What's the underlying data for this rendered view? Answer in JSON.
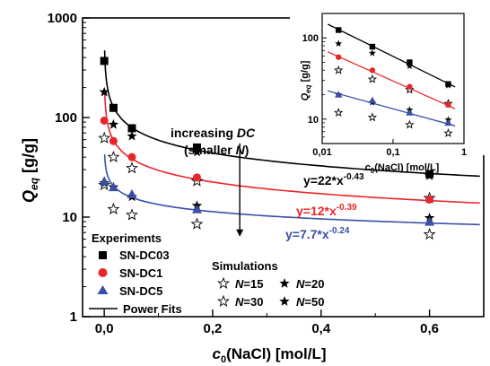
{
  "chart_data": [
    {
      "type": "scatter",
      "xlabel_sym": "c",
      "xlabel_sub": "0",
      "xlabel_rest": "(NaCl) [mol/L]",
      "ylabel_sym": "Q",
      "ylabel_sub": "eq",
      "ylabel_rest": " [g/g]",
      "xlim": [
        -0.04,
        0.7
      ],
      "ylim": [
        1,
        1000
      ],
      "yscale": "log",
      "x_ticks": [
        0.0,
        0.2,
        0.4,
        0.6
      ],
      "x_tick_labels": [
        "0,0",
        "0,2",
        "0,4",
        "0,6"
      ],
      "y_ticks": [
        1,
        10,
        100,
        1000
      ],
      "y_tick_labels": [
        "1",
        "10",
        "100",
        "1000"
      ],
      "series": [
        {
          "name": "SN-DC03",
          "marker": "square",
          "color": "#000000",
          "x": [
            0.0,
            0.017,
            0.051,
            0.171,
            0.6
          ],
          "y": [
            370,
            125,
            78,
            50,
            27
          ]
        },
        {
          "name": "SN-DC1",
          "marker": "circle",
          "color": "#e8262a",
          "x": [
            0.0,
            0.017,
            0.051,
            0.171,
            0.6
          ],
          "y": [
            93,
            58,
            40,
            25,
            15
          ]
        },
        {
          "name": "SN-DC5",
          "marker": "triangle",
          "color": "#3a4fa8",
          "x": [
            0.0,
            0.017,
            0.051,
            0.171,
            0.6
          ],
          "y": [
            23,
            20,
            17,
            12,
            9
          ]
        }
      ],
      "simulations_title": "Simulations",
      "simulations": [
        {
          "name": "15",
          "marker": "star-open",
          "x": [
            0.0,
            0.017,
            0.051,
            0.171,
            0.6
          ],
          "y": [
            21,
            12,
            10.5,
            8.5,
            6.7
          ]
        },
        {
          "name": "20",
          "marker": "star-filled",
          "x": [
            0.0,
            0.017,
            0.051,
            0.171,
            0.6
          ],
          "y": [
            22,
            20,
            16,
            13,
            9.8
          ]
        },
        {
          "name": "30",
          "marker": "star-open",
          "x": [
            0.0,
            0.017,
            0.051,
            0.171,
            0.6
          ],
          "y": [
            62,
            40,
            31,
            23,
            15.5
          ]
        },
        {
          "name": "50",
          "marker": "star-filled",
          "x": [
            0.0,
            0.017,
            0.051,
            0.171,
            0.6
          ],
          "y": [
            180,
            85,
            65,
            45,
            26
          ]
        }
      ],
      "sim_symbol": "N",
      "fits": [
        {
          "series": "SN-DC03",
          "a": 22,
          "b": -0.43,
          "color": "#000000",
          "label_main": "y=22*x",
          "label_exp": "-0.43"
        },
        {
          "series": "SN-DC1",
          "a": 12,
          "b": -0.39,
          "color": "#e8262a",
          "label_main": "y=12*x",
          "label_exp": "-0.39"
        },
        {
          "series": "SN-DC5",
          "a": 7.7,
          "b": -0.24,
          "color": "#3a4fa8",
          "label_main": "y=7.7*x",
          "label_exp": "-0.24"
        }
      ],
      "legend_title": "Experiments",
      "fit_legend": "Power Fits",
      "annotation_line1_a": "increasing ",
      "annotation_line1_b": "DC",
      "annotation_line2_a": "(smaller ",
      "annotation_line2_b": "N",
      "annotation_line2_c": ")",
      "annotation_arrow": {
        "x": 0.25,
        "y_from": 55,
        "y_to": 6.5
      }
    },
    {
      "type": "scatter",
      "role": "inset",
      "xscale": "log",
      "yscale": "log",
      "xlim": [
        0.01,
        1
      ],
      "ylim": [
        5,
        200
      ],
      "x_ticks": [
        0.01,
        0.1,
        1
      ],
      "x_tick_labels": [
        "0,01",
        "0,1",
        "1"
      ],
      "y_ticks": [
        10,
        100
      ],
      "y_tick_labels": [
        "10",
        "100"
      ],
      "xlabel_sym": "c",
      "xlabel_sub": "0",
      "xlabel_rest": "(NaCl) [mol/L]",
      "ylabel_sym": "Q",
      "ylabel_sub": "eq",
      "ylabel_rest": " [g/g]",
      "series": [
        {
          "name": "SN-DC03",
          "x": [
            0.017,
            0.051,
            0.171,
            0.6
          ],
          "y": [
            125,
            78,
            50,
            27
          ]
        },
        {
          "name": "SN-DC1",
          "x": [
            0.017,
            0.051,
            0.171,
            0.6
          ],
          "y": [
            58,
            40,
            25,
            15
          ]
        },
        {
          "name": "SN-DC5",
          "x": [
            0.017,
            0.051,
            0.171,
            0.6
          ],
          "y": [
            20,
            17,
            12,
            9
          ]
        }
      ],
      "simulations": [
        {
          "name": "15",
          "x": [
            0.017,
            0.051,
            0.171,
            0.6
          ],
          "y": [
            12,
            10.5,
            8.5,
            6.7
          ]
        },
        {
          "name": "20",
          "x": [
            0.017,
            0.051,
            0.171,
            0.6
          ],
          "y": [
            20,
            16,
            13,
            9.8
          ]
        },
        {
          "name": "30",
          "x": [
            0.017,
            0.051,
            0.171,
            0.6
          ],
          "y": [
            40,
            31,
            23,
            15.5
          ]
        },
        {
          "name": "50",
          "x": [
            0.017,
            0.051,
            0.171,
            0.6
          ],
          "y": [
            85,
            65,
            45,
            26
          ]
        }
      ]
    }
  ]
}
